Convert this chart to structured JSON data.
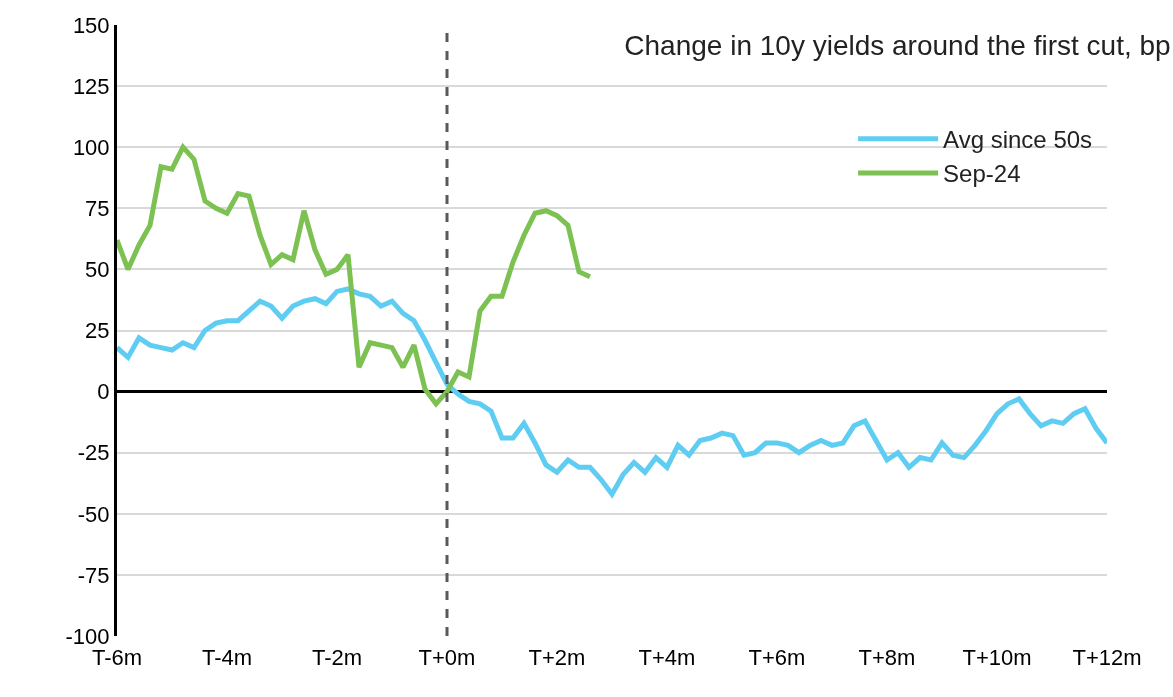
{
  "chart_data": {
    "type": "line",
    "title": "Change in 10y yields around the first cut, bp",
    "categories": [
      "T-6m",
      null,
      null,
      null,
      null,
      null,
      null,
      null,
      null,
      null,
      "T-4m",
      null,
      null,
      null,
      null,
      null,
      null,
      null,
      null,
      null,
      "T-2m",
      null,
      null,
      null,
      null,
      null,
      null,
      null,
      null,
      null,
      "T+0m",
      null,
      null,
      null,
      null,
      null,
      null,
      null,
      null,
      null,
      "T+2m",
      null,
      null,
      null,
      null,
      null,
      null,
      null,
      null,
      null,
      "T+4m",
      null,
      null,
      null,
      null,
      null,
      null,
      null,
      null,
      null,
      "T+6m",
      null,
      null,
      null,
      null,
      null,
      null,
      null,
      null,
      null,
      "T+8m",
      null,
      null,
      null,
      null,
      null,
      null,
      null,
      null,
      null,
      "T+10m",
      null,
      null,
      null,
      null,
      null,
      null,
      null,
      null,
      null,
      "T+12m"
    ],
    "ylim": [
      -100,
      150
    ],
    "yticks": [
      -100,
      -75,
      -50,
      -25,
      0,
      25,
      50,
      75,
      100,
      125,
      150
    ],
    "grid": "y",
    "legend": "top right",
    "ref_lines": [
      {
        "axis": "x",
        "value": "T+0m",
        "color": "#595959",
        "line_style": "dashed"
      }
    ],
    "series": [
      {
        "name": "Avg since 50s",
        "color": "#5fcdf2",
        "values": [
          18,
          14,
          22,
          19,
          18,
          17,
          20,
          18,
          25,
          28,
          29,
          29,
          33,
          37,
          35,
          30,
          35,
          37,
          38,
          36,
          41,
          42,
          40,
          39,
          35,
          37,
          32,
          29,
          21,
          12,
          3,
          -1,
          -4,
          -5,
          -8,
          -19,
          -19,
          -13,
          -21,
          -30,
          -33,
          -28,
          -31,
          -31,
          -36,
          -42,
          -34,
          -29,
          -33,
          -27,
          -31,
          -22,
          -26,
          -20,
          -19,
          -17,
          -18,
          -26,
          -25,
          -21,
          -21,
          -22,
          -25,
          -22,
          -20,
          -22,
          -21,
          -14,
          -12,
          -20,
          -28,
          -25,
          -31,
          -27,
          -28,
          -21,
          -26,
          -27,
          -22,
          -16,
          -9,
          -5,
          -3,
          -9,
          -14,
          -12,
          -13,
          -9,
          -7,
          -15,
          -21
        ]
      },
      {
        "name": "Sep-24",
        "color": "#7cc151",
        "values": [
          62,
          50,
          60,
          68,
          92,
          91,
          100,
          95,
          78,
          75,
          73,
          81,
          80,
          64,
          52,
          56,
          54,
          74,
          58,
          48,
          50,
          56,
          10,
          20,
          19,
          18,
          10,
          19,
          1,
          -5,
          0,
          8,
          6,
          33,
          39,
          39,
          53,
          64,
          73,
          74,
          72,
          68,
          49,
          47,
          null,
          null,
          null,
          null,
          null,
          null,
          null,
          null,
          null,
          null,
          null,
          null,
          null,
          null,
          null,
          null,
          null,
          null,
          null,
          null,
          null,
          null,
          null,
          null,
          null,
          null,
          null,
          null,
          null,
          null,
          null,
          null,
          null,
          null,
          null,
          null,
          null,
          null,
          null,
          null,
          null,
          null,
          null,
          null,
          null,
          null,
          null
        ]
      }
    ]
  }
}
